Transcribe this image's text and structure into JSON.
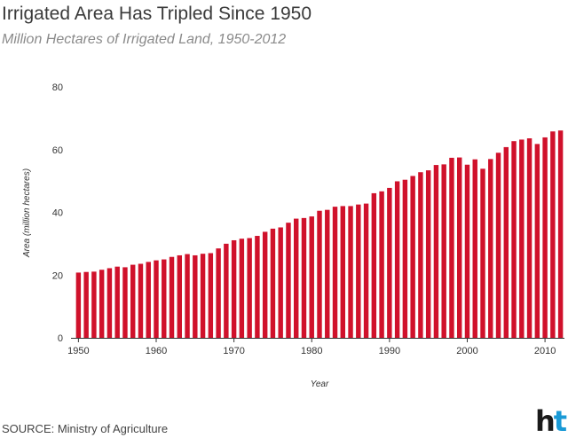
{
  "header": {
    "title": "Irrigated Area Has Tripled Since 1950",
    "subtitle": "Million Hectares of Irrigated Land, 1950-2012"
  },
  "footer": {
    "source": "SOURCE: Ministry of Agriculture",
    "logo_text": "ht",
    "logo_part1": "h",
    "logo_part2": "t"
  },
  "colors": {
    "bar": "#d0112b",
    "logo_dark": "#1a1a1a",
    "logo_blue": "#1a9ad6"
  },
  "chart_data": {
    "type": "bar",
    "title": "Irrigated Area Has Tripled Since 1950",
    "subtitle": "Million Hectares of Irrigated Land, 1950-2012",
    "xlabel": "Year",
    "ylabel": "Area (million hectares)",
    "ylim": [
      0,
      80
    ],
    "yticks": [
      0,
      20,
      40,
      60,
      80
    ],
    "xticks": [
      1950,
      1960,
      1970,
      1980,
      1990,
      2000,
      2010
    ],
    "grid": false,
    "x": [
      1950,
      1951,
      1952,
      1953,
      1954,
      1955,
      1956,
      1957,
      1958,
      1959,
      1960,
      1961,
      1962,
      1963,
      1964,
      1965,
      1966,
      1967,
      1968,
      1969,
      1970,
      1971,
      1972,
      1973,
      1974,
      1975,
      1976,
      1977,
      1978,
      1979,
      1980,
      1981,
      1982,
      1983,
      1984,
      1985,
      1986,
      1987,
      1988,
      1989,
      1990,
      1991,
      1992,
      1993,
      1994,
      1995,
      1996,
      1997,
      1998,
      1999,
      2000,
      2001,
      2002,
      2003,
      2004,
      2005,
      2006,
      2007,
      2008,
      2009,
      2010,
      2011,
      2012
    ],
    "values": [
      20.8,
      21.0,
      21.1,
      21.7,
      22.2,
      22.7,
      22.5,
      23.3,
      23.6,
      24.2,
      24.7,
      25.0,
      25.8,
      26.3,
      26.7,
      26.3,
      26.8,
      27.0,
      28.5,
      30.0,
      31.1,
      31.6,
      31.8,
      32.5,
      33.8,
      34.8,
      35.2,
      36.7,
      38.0,
      38.2,
      38.7,
      40.5,
      40.8,
      41.8,
      42.0,
      42.0,
      42.5,
      42.8,
      46.1,
      46.7,
      47.8,
      49.9,
      50.4,
      51.6,
      52.8,
      53.4,
      55.1,
      55.3,
      57.4,
      57.5,
      55.2,
      56.9,
      53.9,
      57.0,
      59.0,
      60.8,
      62.7,
      63.2,
      63.6,
      61.8,
      63.9,
      65.8,
      66.1
    ]
  }
}
